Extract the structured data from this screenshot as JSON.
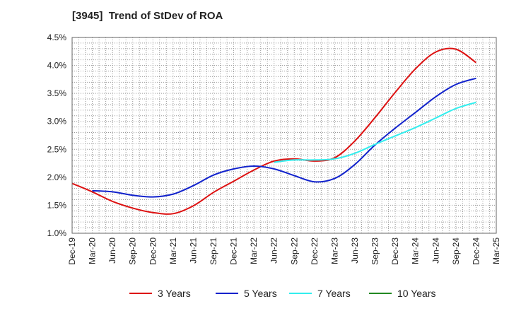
{
  "chart_title": "[3945]  Trend of StDev of ROA",
  "chart_data": {
    "type": "line",
    "title": "[3945]  Trend of StDev of ROA",
    "xlabel": "",
    "ylabel": "",
    "ylim": [
      1.0,
      4.5
    ],
    "y_ticks": [
      "1.0%",
      "1.5%",
      "2.0%",
      "2.5%",
      "3.0%",
      "3.5%",
      "4.0%",
      "4.5%"
    ],
    "x_ticks": [
      "Dec-19",
      "Mar-20",
      "Jun-20",
      "Sep-20",
      "Dec-20",
      "Mar-21",
      "Jun-21",
      "Sep-21",
      "Dec-21",
      "Mar-22",
      "Jun-22",
      "Sep-22",
      "Dec-22",
      "Mar-23",
      "Jun-23",
      "Sep-23",
      "Dec-23",
      "Mar-24",
      "Jun-24",
      "Sep-24",
      "Dec-24",
      "Mar-25"
    ],
    "grid": true,
    "legend_position": "bottom",
    "series": [
      {
        "name": "3 Years",
        "color": "#dd1111",
        "values": [
          1.89,
          1.74,
          1.57,
          1.45,
          1.37,
          1.35,
          1.49,
          1.73,
          1.93,
          2.13,
          2.29,
          2.33,
          2.29,
          2.35,
          2.65,
          3.07,
          3.52,
          3.94,
          4.24,
          4.29,
          4.05,
          null
        ]
      },
      {
        "name": "5 Years",
        "color": "#1122cc",
        "values": [
          null,
          1.76,
          1.74,
          1.68,
          1.65,
          1.7,
          1.85,
          2.04,
          2.15,
          2.2,
          2.15,
          2.03,
          1.92,
          1.98,
          2.23,
          2.58,
          2.88,
          3.16,
          3.44,
          3.66,
          3.77,
          null
        ]
      },
      {
        "name": "7 Years",
        "color": "#33eeee",
        "values": [
          null,
          null,
          null,
          null,
          null,
          null,
          null,
          null,
          null,
          null,
          2.27,
          2.31,
          2.31,
          2.33,
          2.43,
          2.59,
          2.74,
          2.89,
          3.06,
          3.23,
          3.34,
          null
        ]
      },
      {
        "name": "10 Years",
        "color": "#228822",
        "values": []
      }
    ]
  }
}
